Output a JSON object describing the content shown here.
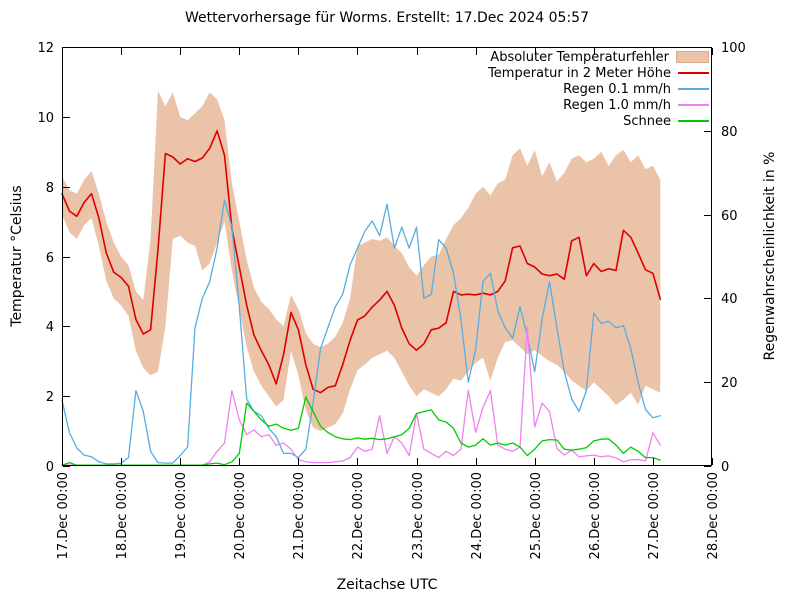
{
  "title": "Wettervorhersage für Worms. Erstellt: 17.Dec 2024 05:57",
  "axes": {
    "x_label": "Zeitachse UTC",
    "y_left_label": "Temperatur °Celsius",
    "y_right_label": "Regenwahrscheinlichkeit in %",
    "x_ticks": [
      "17.Dec 00:00",
      "18.Dec 00:00",
      "19.Dec 00:00",
      "20.Dec 00:00",
      "21.Dec 00:00",
      "22.Dec 00:00",
      "23.Dec 00:00",
      "24.Dec 00:00",
      "25.Dec 00:00",
      "26.Dec 00:00",
      "27.Dec 00:00",
      "28.Dec 00:00"
    ],
    "y_left_ticks": [
      0,
      2,
      4,
      6,
      8,
      10,
      12
    ],
    "y_right_ticks": [
      0,
      20,
      40,
      60,
      80,
      100
    ],
    "y_left_range": [
      0,
      12
    ],
    "y_right_range": [
      0,
      100
    ],
    "x_range_days": [
      0,
      11
    ],
    "grid": "off"
  },
  "legend": [
    {
      "label": "Absoluter Temperaturfehler",
      "type": "band",
      "color": "#ebc3a9"
    },
    {
      "label": "Temperatur in 2 Meter Höhe",
      "type": "line",
      "color": "#dd0000"
    },
    {
      "label": "Regen 0.1 mm/h",
      "type": "line",
      "color": "#58ace0"
    },
    {
      "label": "Regen 1.0 mm/h",
      "type": "line",
      "color": "#ee82ee"
    },
    {
      "label": "Schnee",
      "type": "line",
      "color": "#00cc00"
    }
  ],
  "chart_data": {
    "type": "line",
    "title": "Wettervorhersage für Worms. Erstellt: 17.Dec 2024 05:57",
    "xlabel": "Zeitachse UTC",
    "ylabel_left": "Temperatur °Celsius",
    "ylabel_right": "Regenwahrscheinlichkeit in %",
    "x_unit": "days since 17.Dec 00:00 UTC (3-hourly samples)",
    "x": [
      0,
      0.125,
      0.25,
      0.375,
      0.5,
      0.625,
      0.75,
      0.875,
      1,
      1.125,
      1.25,
      1.375,
      1.5,
      1.625,
      1.75,
      1.875,
      2,
      2.125,
      2.25,
      2.375,
      2.5,
      2.625,
      2.75,
      2.875,
      3,
      3.125,
      3.25,
      3.375,
      3.5,
      3.625,
      3.75,
      3.875,
      4,
      4.125,
      4.25,
      4.375,
      4.5,
      4.625,
      4.75,
      4.875,
      5,
      5.125,
      5.25,
      5.375,
      5.5,
      5.625,
      5.75,
      5.875,
      6,
      6.125,
      6.25,
      6.375,
      6.5,
      6.625,
      6.75,
      6.875,
      7,
      7.125,
      7.25,
      7.375,
      7.5,
      7.625,
      7.75,
      7.875,
      8,
      8.125,
      8.25,
      8.375,
      8.5,
      8.625,
      8.75,
      8.875,
      9,
      9.125,
      9.25,
      9.375,
      9.5,
      9.625,
      9.75,
      9.875,
      10,
      10.125
    ],
    "series": [
      {
        "name": "Absoluter Temperaturfehler",
        "axis": "left",
        "style": "band",
        "color": "#ebc3a9",
        "upper": [
          8.3,
          7.9,
          7.8,
          8.2,
          8.45,
          7.8,
          7.0,
          6.4,
          6.0,
          5.75,
          5.0,
          4.75,
          6.5,
          10.75,
          10.3,
          10.7,
          10.0,
          9.9,
          10.1,
          10.3,
          10.7,
          10.5,
          9.9,
          8.1,
          7.0,
          5.9,
          5.1,
          4.7,
          4.5,
          4.2,
          4.0,
          4.9,
          4.5,
          3.8,
          3.5,
          3.4,
          3.5,
          3.7,
          4.1,
          4.8,
          6.3,
          6.4,
          6.5,
          6.45,
          6.55,
          6.3,
          6.1,
          5.7,
          5.45,
          5.75,
          6.0,
          6.05,
          6.5,
          6.9,
          7.1,
          7.4,
          7.8,
          8.0,
          7.75,
          8.1,
          8.2,
          8.9,
          9.1,
          8.6,
          9.05,
          8.3,
          8.7,
          8.15,
          8.4,
          8.8,
          8.9,
          8.7,
          8.8,
          9.0,
          8.6,
          8.9,
          9.05,
          8.7,
          8.9,
          8.5,
          8.6,
          8.2
        ],
        "lower": [
          7.2,
          6.7,
          6.5,
          6.9,
          7.1,
          6.3,
          5.3,
          4.8,
          4.6,
          4.3,
          3.3,
          2.8,
          2.6,
          2.7,
          4.0,
          6.5,
          6.6,
          6.4,
          6.3,
          5.6,
          5.8,
          6.4,
          7.0,
          5.6,
          4.5,
          3.4,
          2.7,
          2.3,
          2.0,
          1.7,
          1.9,
          3.3,
          2.6,
          1.6,
          1.1,
          1.0,
          1.1,
          1.2,
          1.5,
          2.2,
          2.75,
          2.9,
          3.1,
          3.2,
          3.3,
          3.1,
          2.7,
          2.3,
          2.0,
          2.2,
          2.1,
          2.0,
          2.2,
          2.5,
          2.45,
          2.7,
          2.95,
          3.1,
          2.45,
          3.1,
          3.55,
          3.6,
          3.4,
          3.2,
          3.32,
          3.15,
          3.0,
          2.9,
          2.7,
          2.45,
          2.3,
          2.15,
          2.4,
          2.2,
          2.0,
          1.75,
          1.9,
          2.1,
          1.75,
          2.3,
          2.2,
          2.1
        ]
      },
      {
        "name": "Temperatur in 2 Meter Höhe",
        "axis": "left",
        "style": "line",
        "color": "#dd0000",
        "values": [
          7.8,
          7.3,
          7.15,
          7.55,
          7.8,
          7.1,
          6.1,
          5.55,
          5.4,
          5.15,
          4.2,
          3.78,
          3.9,
          6.2,
          8.95,
          8.85,
          8.65,
          8.8,
          8.72,
          8.82,
          9.1,
          9.6,
          8.9,
          6.8,
          5.7,
          4.6,
          3.75,
          3.3,
          2.9,
          2.35,
          3.2,
          4.4,
          3.9,
          2.9,
          2.2,
          2.1,
          2.25,
          2.3,
          2.9,
          3.6,
          4.18,
          4.3,
          4.55,
          4.75,
          5.0,
          4.6,
          3.95,
          3.5,
          3.32,
          3.5,
          3.9,
          3.95,
          4.1,
          5.0,
          4.9,
          4.92,
          4.9,
          4.95,
          4.9,
          5.0,
          5.3,
          6.25,
          6.3,
          5.8,
          5.7,
          5.5,
          5.45,
          5.5,
          5.35,
          6.45,
          6.55,
          5.45,
          5.8,
          5.57,
          5.65,
          5.6,
          6.75,
          6.55,
          6.1,
          5.62,
          5.52,
          4.78
        ]
      },
      {
        "name": "Regen 0.1 mm/h",
        "axis": "right",
        "style": "line",
        "color": "#58ace0",
        "values": [
          15.7,
          8.0,
          4.3,
          2.6,
          2.2,
          1.0,
          0.5,
          0.5,
          0.7,
          2.0,
          18.0,
          13.0,
          3.5,
          0.8,
          0.7,
          0.7,
          2.5,
          4.5,
          33.0,
          40.0,
          44.0,
          52.0,
          63.5,
          57.0,
          38.0,
          16.0,
          13.0,
          12.0,
          9.0,
          7.0,
          3.0,
          3.0,
          2.0,
          4.0,
          15.0,
          28.0,
          33.0,
          38.0,
          41.0,
          48.0,
          52.0,
          56.0,
          58.5,
          55.0,
          62.5,
          52.0,
          57.0,
          52.0,
          57.0,
          40.0,
          41.0,
          54.0,
          52.0,
          46.0,
          35.0,
          20.0,
          27.7,
          44.0,
          46.0,
          37.0,
          33.0,
          30.5,
          38.0,
          31.0,
          22.5,
          35.0,
          44.0,
          33.0,
          22.5,
          16.0,
          13.0,
          18.0,
          36.5,
          34.0,
          34.5,
          33.0,
          33.5,
          28.0,
          20.0,
          13.5,
          11.5,
          12.0
        ]
      },
      {
        "name": "Regen 1.0 mm/h",
        "axis": "right",
        "style": "line",
        "color": "#ee82ee",
        "values": [
          0.2,
          0.2,
          0.2,
          0.2,
          0.2,
          0.2,
          0.2,
          0.2,
          0.2,
          0.2,
          0.2,
          0.2,
          0.2,
          0.2,
          0.2,
          0.2,
          0.2,
          0.2,
          0.2,
          0.2,
          1.0,
          3.5,
          5.5,
          18.0,
          11.0,
          7.5,
          8.6,
          7.0,
          7.5,
          5.0,
          5.5,
          4.0,
          1.5,
          1.0,
          0.8,
          0.8,
          0.8,
          1.0,
          1.2,
          2.0,
          4.5,
          3.5,
          4.0,
          12.0,
          3.0,
          7.0,
          5.5,
          2.5,
          12.6,
          4.0,
          3.0,
          2.0,
          3.5,
          2.5,
          4.0,
          18.1,
          8.0,
          14.0,
          18.0,
          5.0,
          4.0,
          3.5,
          4.5,
          33.2,
          9.3,
          15.0,
          13.0,
          4.2,
          2.6,
          3.8,
          2.2,
          2.4,
          2.6,
          2.2,
          2.4,
          1.9,
          1.0,
          1.5,
          1.5,
          1.2,
          7.9,
          5.0
        ]
      },
      {
        "name": "Schnee",
        "axis": "right",
        "style": "line",
        "color": "#00cc00",
        "values": [
          0.2,
          0.8,
          0.2,
          0.2,
          0.2,
          0.2,
          0.2,
          0.2,
          0.2,
          0.2,
          0.2,
          0.2,
          0.2,
          0.2,
          0.2,
          0.2,
          0.2,
          0.2,
          0.2,
          0.2,
          0.5,
          0.7,
          0.3,
          1.0,
          3.0,
          15.0,
          13.0,
          11.0,
          9.5,
          10.0,
          9.0,
          8.5,
          9.0,
          16.5,
          13.0,
          9.5,
          8.0,
          7.0,
          6.5,
          6.3,
          6.7,
          6.4,
          6.6,
          6.3,
          6.5,
          7.0,
          7.5,
          9.0,
          12.5,
          13.0,
          13.4,
          11.0,
          10.5,
          9.0,
          5.5,
          4.5,
          5.0,
          6.5,
          5.0,
          5.5,
          5.0,
          5.5,
          4.5,
          2.5,
          4.0,
          6.0,
          6.3,
          6.2,
          4.0,
          3.8,
          4.0,
          4.4,
          6.0,
          6.4,
          6.5,
          5.0,
          3.0,
          4.5,
          3.5,
          2.0,
          2.0,
          1.4
        ]
      }
    ]
  }
}
